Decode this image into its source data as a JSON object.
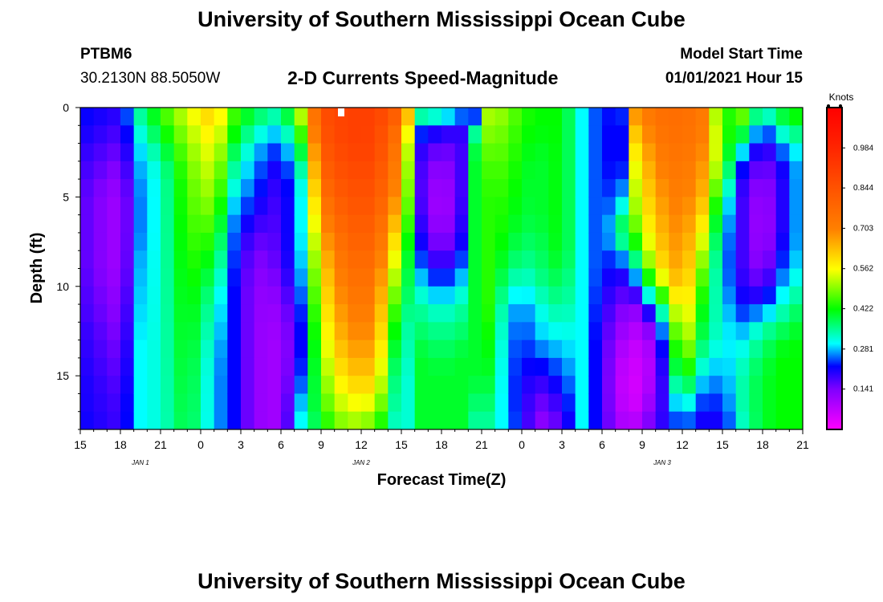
{
  "header": {
    "title": "University of Southern Mississippi Ocean Cube",
    "station_id": "PTBM6",
    "coordinates": "30.2130N 88.5050W",
    "subtitle": "2-D Currents Speed-Magnitude",
    "model_start_label": "Model Start Time",
    "model_start_value": "01/01/2021 Hour 15"
  },
  "footer": {
    "title": "University of Southern Mississippi Ocean Cube"
  },
  "chart_data": {
    "type": "heatmap",
    "title": "2-D Currents Speed-Magnitude",
    "xlabel": "Forecast Time(Z)",
    "ylabel": "Depth (ft)",
    "x_range_hours": [
      0,
      54
    ],
    "y_range_ft": [
      0,
      18
    ],
    "y_inverted": true,
    "x_ticks": [
      {
        "h": 0,
        "label": "15"
      },
      {
        "h": 3,
        "label": "18"
      },
      {
        "h": 6,
        "label": "21"
      },
      {
        "h": 9,
        "label": "0"
      },
      {
        "h": 12,
        "label": "3"
      },
      {
        "h": 15,
        "label": "6"
      },
      {
        "h": 18,
        "label": "9"
      },
      {
        "h": 21,
        "label": "12"
      },
      {
        "h": 24,
        "label": "15"
      },
      {
        "h": 27,
        "label": "18"
      },
      {
        "h": 30,
        "label": "21"
      },
      {
        "h": 33,
        "label": "0"
      },
      {
        "h": 36,
        "label": "3"
      },
      {
        "h": 39,
        "label": "6"
      },
      {
        "h": 42,
        "label": "9"
      },
      {
        "h": 45,
        "label": "12"
      },
      {
        "h": 48,
        "label": "15"
      },
      {
        "h": 51,
        "label": "18"
      },
      {
        "h": 54,
        "label": "21"
      }
    ],
    "date_labels": [
      {
        "h": 4.5,
        "label": "JAN 1"
      },
      {
        "h": 21,
        "label": "JAN 2"
      },
      {
        "h": 43.5,
        "label": "JAN 3"
      }
    ],
    "y_ticks": [
      {
        "d": 0,
        "label": "0"
      },
      {
        "d": 5,
        "label": "5"
      },
      {
        "d": 10,
        "label": "10"
      },
      {
        "d": 15,
        "label": "15"
      }
    ],
    "colorbar": {
      "unit_label": "Knots",
      "range": [
        0,
        1.125
      ],
      "ticks": [
        {
          "v": 0.141,
          "label": "0.141"
        },
        {
          "v": 0.281,
          "label": "0.281"
        },
        {
          "v": 0.422,
          "label": "0.422"
        },
        {
          "v": 0.562,
          "label": "0.562"
        },
        {
          "v": 0.703,
          "label": "0.703"
        },
        {
          "v": 0.844,
          "label": "0.844"
        },
        {
          "v": 0.984,
          "label": "0.984"
        }
      ],
      "stops": [
        {
          "v": 0.0,
          "color": "#ff00ff"
        },
        {
          "v": 0.14,
          "color": "#8000ff"
        },
        {
          "v": 0.22,
          "color": "#0000ff"
        },
        {
          "v": 0.3,
          "color": "#00ffff"
        },
        {
          "v": 0.42,
          "color": "#00ff00"
        },
        {
          "v": 0.56,
          "color": "#ffff00"
        },
        {
          "v": 0.7,
          "color": "#ff8000"
        },
        {
          "v": 1.0,
          "color": "#ff2000"
        },
        {
          "v": 1.125,
          "color": "#ff0000"
        }
      ]
    },
    "depths_ft": [
      0,
      1,
      2,
      3,
      4,
      5,
      6,
      7,
      8,
      9,
      10,
      11,
      12,
      13,
      14,
      15,
      16,
      17,
      18
    ],
    "hour_profiles": [
      {
        "h": 0,
        "values": [
          0.22,
          0.22,
          0.2,
          0.19,
          0.18,
          0.17,
          0.17,
          0.17,
          0.17,
          0.17,
          0.18,
          0.18,
          0.19,
          0.2,
          0.2,
          0.21,
          0.21,
          0.21,
          0.22
        ]
      },
      {
        "h": 3,
        "values": [
          0.2,
          0.18,
          0.16,
          0.14,
          0.12,
          0.1,
          0.1,
          0.1,
          0.1,
          0.1,
          0.11,
          0.12,
          0.13,
          0.14,
          0.15,
          0.16,
          0.17,
          0.18,
          0.18
        ]
      },
      {
        "h": 4.5,
        "values": [
          0.36,
          0.33,
          0.3,
          0.28,
          0.27,
          0.26,
          0.26,
          0.26,
          0.27,
          0.28,
          0.28,
          0.29,
          0.29,
          0.3,
          0.3,
          0.3,
          0.3,
          0.3,
          0.3
        ]
      },
      {
        "h": 6,
        "values": [
          0.45,
          0.42,
          0.38,
          0.34,
          0.32,
          0.32,
          0.32,
          0.32,
          0.32,
          0.32,
          0.32,
          0.32,
          0.32,
          0.32,
          0.32,
          0.32,
          0.32,
          0.32,
          0.32
        ]
      },
      {
        "h": 8,
        "values": [
          0.55,
          0.52,
          0.5,
          0.48,
          0.47,
          0.46,
          0.46,
          0.45,
          0.45,
          0.44,
          0.44,
          0.43,
          0.43,
          0.42,
          0.42,
          0.41,
          0.41,
          0.4,
          0.4
        ]
      },
      {
        "h": 10,
        "values": [
          0.63,
          0.6,
          0.57,
          0.55,
          0.53,
          0.51,
          0.48,
          0.45,
          0.42,
          0.39,
          0.36,
          0.33,
          0.32,
          0.3,
          0.29,
          0.28,
          0.28,
          0.28,
          0.28
        ]
      },
      {
        "h": 11.5,
        "values": [
          0.46,
          0.44,
          0.4,
          0.36,
          0.33,
          0.3,
          0.27,
          0.25,
          0.24,
          0.23,
          0.22,
          0.22,
          0.22,
          0.22,
          0.22,
          0.22,
          0.22,
          0.22,
          0.22
        ]
      },
      {
        "h": 13,
        "values": [
          0.4,
          0.35,
          0.3,
          0.27,
          0.25,
          0.23,
          0.2,
          0.17,
          0.14,
          0.13,
          0.12,
          0.12,
          0.12,
          0.12,
          0.12,
          0.12,
          0.12,
          0.12,
          0.12
        ]
      },
      {
        "h": 15,
        "values": [
          0.35,
          0.3,
          0.24,
          0.2,
          0.18,
          0.17,
          0.17,
          0.17,
          0.17,
          0.16,
          0.14,
          0.12,
          0.11,
          0.1,
          0.1,
          0.1,
          0.1,
          0.1,
          0.1
        ]
      },
      {
        "h": 16.5,
        "values": [
          0.55,
          0.48,
          0.42,
          0.36,
          0.32,
          0.3,
          0.3,
          0.3,
          0.29,
          0.28,
          0.26,
          0.24,
          0.22,
          0.22,
          0.22,
          0.24,
          0.26,
          0.3,
          0.3
        ]
      },
      {
        "h": 18,
        "values": [
          0.85,
          0.85,
          0.82,
          0.8,
          0.78,
          0.74,
          0.7,
          0.66,
          0.63,
          0.6,
          0.58,
          0.56,
          0.54,
          0.52,
          0.5,
          0.48,
          0.46,
          0.44,
          0.4
        ]
      },
      {
        "h": 20,
        "values": [
          0.9,
          0.9,
          0.9,
          0.88,
          0.86,
          0.84,
          0.82,
          0.8,
          0.78,
          0.76,
          0.74,
          0.72,
          0.7,
          0.68,
          0.65,
          0.62,
          0.58,
          0.54,
          0.5
        ]
      },
      {
        "h": 22,
        "values": [
          0.9,
          0.9,
          0.89,
          0.88,
          0.86,
          0.84,
          0.82,
          0.8,
          0.78,
          0.76,
          0.74,
          0.72,
          0.7,
          0.68,
          0.65,
          0.62,
          0.58,
          0.52,
          0.46
        ]
      },
      {
        "h": 24,
        "values": [
          0.8,
          0.74,
          0.7,
          0.68,
          0.66,
          0.64,
          0.6,
          0.55,
          0.5,
          0.46,
          0.42,
          0.38,
          0.34,
          0.32,
          0.3,
          0.28,
          0.28,
          0.28,
          0.28
        ]
      },
      {
        "h": 25.5,
        "values": [
          0.42,
          0.26,
          0.2,
          0.18,
          0.17,
          0.17,
          0.18,
          0.2,
          0.22,
          0.26,
          0.3,
          0.34,
          0.36,
          0.38,
          0.4,
          0.4,
          0.4,
          0.4,
          0.4
        ]
      },
      {
        "h": 27,
        "values": [
          0.4,
          0.22,
          0.16,
          0.12,
          0.1,
          0.08,
          0.08,
          0.1,
          0.13,
          0.18,
          0.24,
          0.3,
          0.34,
          0.36,
          0.38,
          0.4,
          0.4,
          0.4,
          0.4
        ]
      },
      {
        "h": 28.5,
        "values": [
          0.3,
          0.2,
          0.18,
          0.18,
          0.18,
          0.18,
          0.19,
          0.2,
          0.22,
          0.26,
          0.3,
          0.34,
          0.36,
          0.38,
          0.4,
          0.4,
          0.4,
          0.4,
          0.4
        ]
      },
      {
        "h": 29.5,
        "values": [
          0.16,
          0.32,
          0.38,
          0.4,
          0.4,
          0.4,
          0.4,
          0.4,
          0.4,
          0.4,
          0.4,
          0.4,
          0.4,
          0.4,
          0.4,
          0.4,
          0.38,
          0.36,
          0.34
        ]
      },
      {
        "h": 30.5,
        "values": [
          0.52,
          0.5,
          0.48,
          0.46,
          0.45,
          0.44,
          0.44,
          0.44,
          0.44,
          0.44,
          0.44,
          0.44,
          0.43,
          0.42,
          0.41,
          0.4,
          0.38,
          0.36,
          0.34
        ]
      },
      {
        "h": 32,
        "values": [
          0.5,
          0.48,
          0.47,
          0.46,
          0.45,
          0.44,
          0.43,
          0.42,
          0.4,
          0.38,
          0.34,
          0.3,
          0.28,
          0.27,
          0.26,
          0.26,
          0.26,
          0.27,
          0.28
        ]
      },
      {
        "h": 33,
        "values": [
          0.44,
          0.43,
          0.42,
          0.41,
          0.4,
          0.4,
          0.39,
          0.38,
          0.36,
          0.34,
          0.3,
          0.26,
          0.24,
          0.23,
          0.22,
          0.21,
          0.2,
          0.2,
          0.2
        ]
      },
      {
        "h": 34.5,
        "values": [
          0.42,
          0.42,
          0.41,
          0.4,
          0.4,
          0.4,
          0.4,
          0.39,
          0.38,
          0.37,
          0.35,
          0.32,
          0.3,
          0.28,
          0.24,
          0.2,
          0.17,
          0.14,
          0.12
        ]
      },
      {
        "h": 36,
        "values": [
          0.42,
          0.42,
          0.42,
          0.42,
          0.42,
          0.42,
          0.42,
          0.42,
          0.42,
          0.4,
          0.38,
          0.36,
          0.33,
          0.3,
          0.27,
          0.24,
          0.21,
          0.18,
          0.16
        ]
      },
      {
        "h": 37.5,
        "values": [
          0.3,
          0.3,
          0.3,
          0.3,
          0.3,
          0.3,
          0.3,
          0.3,
          0.3,
          0.3,
          0.3,
          0.3,
          0.3,
          0.3,
          0.3,
          0.3,
          0.3,
          0.3,
          0.3
        ]
      },
      {
        "h": 39,
        "values": [
          0.22,
          0.22,
          0.22,
          0.22,
          0.22,
          0.22,
          0.22,
          0.22,
          0.22,
          0.22,
          0.21,
          0.2,
          0.19,
          0.18,
          0.18,
          0.18,
          0.18,
          0.18,
          0.18
        ]
      },
      {
        "h": 40.5,
        "values": [
          0.24,
          0.22,
          0.22,
          0.22,
          0.24,
          0.28,
          0.34,
          0.4,
          0.3,
          0.22,
          0.18,
          0.15,
          0.12,
          0.1,
          0.08,
          0.07,
          0.07,
          0.08,
          0.1
        ]
      },
      {
        "h": 41.5,
        "values": [
          0.7,
          0.64,
          0.6,
          0.56,
          0.54,
          0.52,
          0.5,
          0.46,
          0.4,
          0.32,
          0.22,
          0.14,
          0.1,
          0.07,
          0.06,
          0.05,
          0.05,
          0.06,
          0.1
        ]
      },
      {
        "h": 43,
        "values": [
          0.75,
          0.74,
          0.72,
          0.7,
          0.68,
          0.66,
          0.64,
          0.62,
          0.6,
          0.56,
          0.46,
          0.3,
          0.18,
          0.12,
          0.1,
          0.1,
          0.12,
          0.15,
          0.18
        ]
      },
      {
        "h": 45,
        "values": [
          0.76,
          0.76,
          0.75,
          0.74,
          0.73,
          0.72,
          0.71,
          0.7,
          0.69,
          0.68,
          0.66,
          0.63,
          0.6,
          0.56,
          0.52,
          0.46,
          0.38,
          0.3,
          0.24
        ]
      },
      {
        "h": 46.5,
        "values": [
          0.72,
          0.72,
          0.7,
          0.68,
          0.66,
          0.64,
          0.6,
          0.56,
          0.52,
          0.48,
          0.45,
          0.42,
          0.4,
          0.38,
          0.34,
          0.3,
          0.26,
          0.22,
          0.2
        ]
      },
      {
        "h": 48,
        "values": [
          0.4,
          0.44,
          0.46,
          0.46,
          0.42,
          0.36,
          0.32,
          0.3,
          0.28,
          0.28,
          0.28,
          0.3,
          0.3,
          0.3,
          0.28,
          0.26,
          0.24,
          0.22,
          0.2
        ]
      },
      {
        "h": 49.5,
        "values": [
          0.5,
          0.44,
          0.34,
          0.24,
          0.2,
          0.18,
          0.18,
          0.18,
          0.18,
          0.18,
          0.2,
          0.22,
          0.26,
          0.3,
          0.32,
          0.34,
          0.34,
          0.34,
          0.32
        ]
      },
      {
        "h": 51,
        "values": [
          0.36,
          0.24,
          0.18,
          0.14,
          0.12,
          0.1,
          0.09,
          0.09,
          0.1,
          0.12,
          0.16,
          0.22,
          0.32,
          0.36,
          0.38,
          0.4,
          0.4,
          0.4,
          0.4
        ]
      },
      {
        "h": 52.5,
        "values": [
          0.42,
          0.36,
          0.28,
          0.22,
          0.2,
          0.2,
          0.2,
          0.2,
          0.22,
          0.24,
          0.28,
          0.32,
          0.36,
          0.4,
          0.42,
          0.42,
          0.42,
          0.42,
          0.42
        ]
      },
      {
        "h": 54,
        "values": [
          0.46,
          0.4,
          0.34,
          0.3,
          0.3,
          0.3,
          0.3,
          0.3,
          0.3,
          0.32,
          0.34,
          0.38,
          0.4,
          0.42,
          0.42,
          0.42,
          0.42,
          0.42,
          0.42
        ]
      }
    ]
  }
}
